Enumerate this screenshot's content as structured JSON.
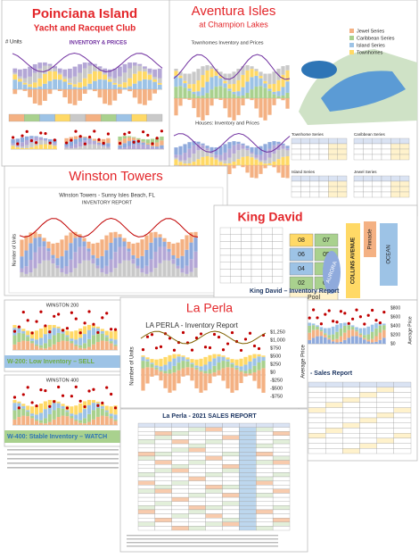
{
  "poinciana": {
    "title": "Poinciana Island",
    "subtitle": "Yacht and Racquet Club",
    "chart_title": "INVENTORY & PRICES",
    "axis_label": "# Units"
  },
  "aventura": {
    "title": "Aventura Isles",
    "subtitle": "at Champion Lakes",
    "chart1_title": "Townhomes Inventory and Prices",
    "chart2_title": "Houses: Inventory and Prices",
    "legend": [
      "Jewel Series",
      "Caribbean Series",
      "Island Series",
      "Townhomes"
    ],
    "tables": [
      "Townhome Series",
      "Caribbean Series",
      "Island Series",
      "Jewel Series"
    ]
  },
  "winston": {
    "title": "Winston Towers",
    "chart_title": "Winston Towers - Sunny Isles Beach, FL",
    "chart_subtitle": "INVENTORY REPORT",
    "axis_label": "Number of Units"
  },
  "king_david": {
    "title": "King David",
    "avenue": "COLLINS AVENUE",
    "pinnacle": "Pinnacle",
    "ocean": "OCEAN",
    "aurora": "AURORA",
    "pool": "Pool",
    "units": [
      "08",
      "07",
      "06",
      "05",
      "04",
      "03",
      "02",
      "01"
    ],
    "report_title": "King David – Inventory Report",
    "price_ticks": [
      "$800",
      "$600",
      "$400",
      "$200",
      "$0"
    ],
    "y2_label": "Average Price",
    "sales_title": "- Sales Report"
  },
  "w200": {
    "title": "WINSTON 200",
    "verdict": "W-200: Low Inventory – SELL"
  },
  "w400": {
    "title": "WINSTON 400",
    "verdict": "W-400: Stable Inventory – WATCH"
  },
  "la_perla": {
    "title": "La Perla",
    "chart_title": "LA PERLA - Inventory Report",
    "y_label": "Number of Units",
    "y2_label": "Average Price",
    "price_ticks": [
      "$1,250",
      "$1,000",
      "$750",
      "$500",
      "$250",
      "$0",
      "-$250",
      "-$500",
      "-$750"
    ],
    "sales_title": "La Perla - 2021 SALES REPORT"
  }
}
